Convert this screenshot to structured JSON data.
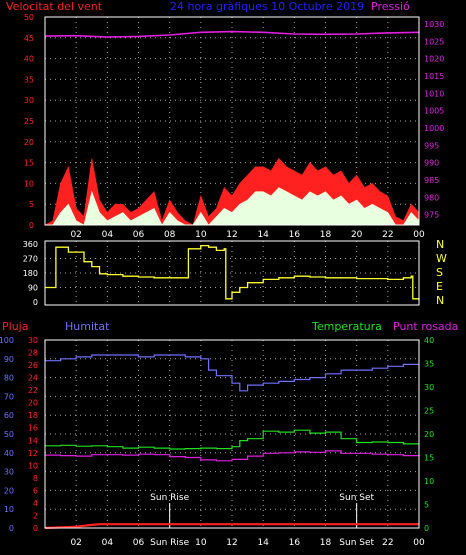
{
  "colors": {
    "background": "#000000",
    "frame": "#ffffff",
    "grid": "#a8a8a8",
    "wind_max": "#ff2020",
    "wind_avg": "#e8ffe0",
    "wind_dir": "#ffff30",
    "pressure": "#e020e0",
    "title": "#2020ff",
    "rain": "#ff2020",
    "humidity": "#7070ff",
    "temperature": "#20e020",
    "dew_point": "#e020e0",
    "time_ticks": "#ffffff",
    "left_ticks_top": "#ff2020",
    "left_ticks_hum": "#7070ff",
    "left_ticks_rain": "#ff2020",
    "right_ticks_temp": "#20e020",
    "compass": "#ffff30",
    "sun_markers": "#ffffff"
  },
  "chart_data": [
    {
      "type": "line",
      "id": "wind-pressure",
      "title": "24 hora gràfiques 10 Octubre 2019",
      "left_axis_label": "Velocitat del vent",
      "right_axis_label": "Pressió",
      "x_ticks": [
        "02",
        "04",
        "06",
        "08",
        "10",
        "12",
        "14",
        "16",
        "18",
        "20",
        "22",
        "00"
      ],
      "left_ylim": [
        0,
        50
      ],
      "left_ticks": [
        0,
        5,
        10,
        15,
        20,
        25,
        30,
        35,
        40,
        45,
        50
      ],
      "right_ylim": [
        972,
        1032
      ],
      "right_ticks": [
        975,
        980,
        985,
        990,
        995,
        1000,
        1005,
        1010,
        1015,
        1020,
        1025,
        1030
      ],
      "grid": true,
      "series": [
        {
          "key": "wind_max",
          "x": [
            0,
            0.5,
            1,
            1.5,
            2,
            2.5,
            3,
            3.5,
            4,
            4.5,
            5,
            5.5,
            6,
            6.5,
            7,
            7.5,
            8,
            8.5,
            9,
            9.5,
            10,
            10.5,
            11,
            11.5,
            12,
            12.5,
            13,
            13.5,
            14,
            14.5,
            15,
            15.5,
            16,
            16.5,
            17,
            17.5,
            18,
            18.5,
            19,
            19.5,
            20,
            20.5,
            21,
            21.5,
            22,
            22.5,
            23,
            23.5,
            24
          ],
          "values": [
            0,
            1,
            10,
            14,
            4,
            2,
            16,
            6,
            3,
            5,
            5,
            3,
            4,
            6,
            8,
            1,
            6,
            3,
            1,
            0,
            7,
            2,
            4,
            9,
            7,
            10,
            12,
            14,
            14,
            13,
            16,
            14,
            13,
            12,
            15,
            13,
            14,
            12,
            13,
            10,
            12,
            9,
            10,
            8,
            7,
            2,
            1,
            5,
            3
          ]
        },
        {
          "key": "wind_avg",
          "x": [
            0,
            0.5,
            1,
            1.5,
            2,
            2.5,
            3,
            3.5,
            4,
            4.5,
            5,
            5.5,
            6,
            6.5,
            7,
            7.5,
            8,
            8.5,
            9,
            9.5,
            10,
            10.5,
            11,
            11.5,
            12,
            12.5,
            13,
            13.5,
            14,
            14.5,
            15,
            15.5,
            16,
            16.5,
            17,
            17.5,
            18,
            18.5,
            19,
            19.5,
            20,
            20.5,
            21,
            21.5,
            22,
            22.5,
            23,
            23.5,
            24
          ],
          "values": [
            0,
            0,
            3,
            5,
            1,
            0,
            8,
            3,
            1,
            2,
            3,
            1,
            2,
            3,
            4,
            0,
            3,
            1,
            0,
            0,
            3,
            0,
            2,
            4,
            3,
            5,
            6,
            8,
            8,
            7,
            9,
            8,
            7,
            6,
            8,
            7,
            8,
            6,
            7,
            5,
            6,
            4,
            5,
            4,
            3,
            0,
            0,
            3,
            1
          ]
        },
        {
          "key": "pressure",
          "x": [
            0,
            2,
            4,
            6,
            8,
            10,
            12,
            14,
            16,
            18,
            20,
            22,
            24
          ],
          "values": [
            1026.5,
            1026.6,
            1026.2,
            1026.4,
            1026.8,
            1027.6,
            1027.8,
            1027.6,
            1027.1,
            1027.0,
            1027.1,
            1027.4,
            1027.6
          ]
        }
      ]
    },
    {
      "type": "line",
      "id": "wind-direction",
      "y_ticks": [
        0,
        90,
        180,
        270,
        360
      ],
      "ylim": [
        0,
        360
      ],
      "compass_labels": [
        "N",
        "W",
        "S",
        "E",
        "N"
      ],
      "grid": true,
      "series": [
        {
          "key": "wind_dir",
          "x": [
            0,
            0.6,
            0.7,
            1.5,
            2.5,
            3,
            3.5,
            4,
            5,
            6,
            7,
            8,
            9,
            9.2,
            10,
            10.5,
            11,
            11.5,
            11.6,
            12,
            12.5,
            13,
            14,
            15,
            16,
            17,
            18,
            19,
            20,
            21,
            22,
            23,
            23.5,
            23.6,
            24
          ],
          "values": [
            90,
            90,
            340,
            310,
            250,
            220,
            175,
            170,
            160,
            155,
            150,
            150,
            150,
            330,
            350,
            340,
            320,
            330,
            20,
            60,
            90,
            120,
            140,
            150,
            160,
            155,
            150,
            150,
            145,
            145,
            140,
            150,
            160,
            20,
            10
          ]
        }
      ]
    },
    {
      "type": "line",
      "id": "temp-humidity",
      "rain_label": "Pluja",
      "humidity_label": "Humitat",
      "temperature_label": "Temperatura",
      "dew_point_label": "Punt rosada",
      "sun_rise_label": "Sun Rise",
      "sun_set_label": "Sun Set",
      "sun_rise_hour": 8,
      "sun_set_hour": 20,
      "x_ticks": [
        "02",
        "04",
        "06",
        "Sun Rise",
        "10",
        "12",
        "14",
        "16",
        "18",
        "Sun Set",
        "22",
        "00"
      ],
      "hum_ylim": [
        0,
        100
      ],
      "hum_ticks": [
        0,
        10,
        20,
        30,
        40,
        50,
        60,
        70,
        80,
        90,
        100
      ],
      "rain_ylim": [
        0,
        30
      ],
      "rain_ticks": [
        0,
        2,
        4,
        6,
        8,
        10,
        12,
        14,
        16,
        18,
        20,
        22,
        24,
        26,
        28,
        30
      ],
      "temp_ylim": [
        0,
        40
      ],
      "temp_ticks": [
        0,
        5,
        10,
        15,
        20,
        25,
        30,
        35,
        40
      ],
      "grid": true,
      "series": [
        {
          "key": "humidity",
          "x": [
            0,
            1,
            2,
            3,
            4,
            5,
            6,
            7,
            8,
            9,
            10,
            10.5,
            11,
            12,
            12.5,
            13,
            14,
            15,
            16,
            17,
            18,
            19,
            20,
            21,
            22,
            23,
            24
          ],
          "values": [
            89,
            90,
            91,
            92,
            92,
            92,
            91,
            92,
            92,
            91,
            90,
            84,
            81,
            77,
            73,
            76,
            77,
            78,
            79,
            80,
            82,
            84,
            84,
            85,
            86,
            87,
            87
          ]
        },
        {
          "key": "temperature",
          "x": [
            0,
            1,
            2,
            3,
            4,
            5,
            6,
            7,
            8,
            9,
            10,
            11,
            12,
            12.5,
            13,
            14,
            15,
            16,
            17,
            18,
            19,
            20,
            21,
            22,
            23,
            24
          ],
          "values": [
            17.5,
            17.6,
            17.4,
            17.5,
            17.3,
            17.0,
            17.2,
            17.0,
            16.8,
            16.9,
            17.0,
            16.9,
            17.3,
            18.6,
            19.0,
            20.6,
            20.4,
            20.8,
            20.2,
            20.4,
            19.0,
            18.2,
            18.3,
            18.2,
            17.9,
            17.8
          ]
        },
        {
          "key": "dew_point",
          "x": [
            0,
            1,
            2,
            3,
            4,
            5,
            6,
            7,
            8,
            9,
            10,
            11,
            12,
            13,
            14,
            15,
            16,
            17,
            18,
            19,
            20,
            21,
            22,
            23,
            24
          ],
          "values": [
            15.5,
            15.4,
            15.3,
            15.6,
            15.6,
            15.5,
            15.7,
            15.6,
            15.2,
            15.0,
            14.5,
            14.3,
            14.6,
            15.3,
            15.9,
            16.0,
            16.2,
            16.1,
            16.4,
            15.9,
            15.9,
            15.7,
            15.6,
            15.4,
            15.3
          ]
        },
        {
          "key": "rain",
          "x": [
            0,
            1,
            2,
            3,
            3.5,
            4,
            6,
            8,
            10,
            12,
            14,
            16,
            18,
            20,
            22,
            24
          ],
          "values": [
            0,
            0.1,
            0.2,
            0.5,
            0.6,
            0.6,
            0.6,
            0.6,
            0.6,
            0.6,
            0.6,
            0.6,
            0.6,
            0.6,
            0.6,
            0.6
          ]
        }
      ]
    }
  ]
}
